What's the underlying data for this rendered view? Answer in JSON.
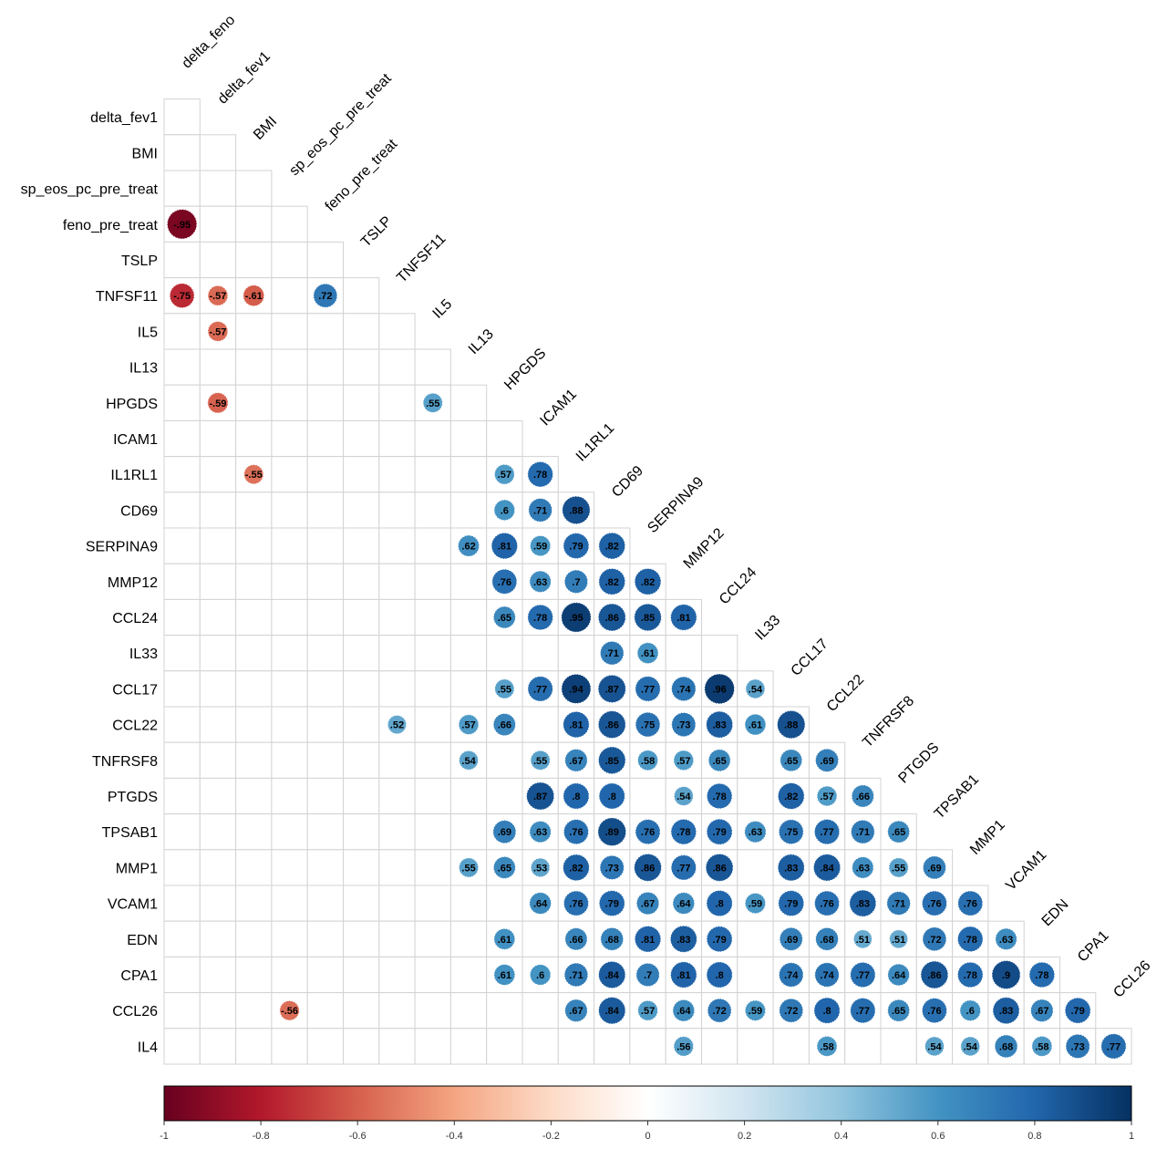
{
  "chart_data": {
    "type": "heatmap",
    "variables": [
      "delta_feno",
      "delta_fev1",
      "BMI",
      "sp_eos_pc_pre_treat",
      "feno_pre_treat",
      "TSLP",
      "TNFSF11",
      "IL5",
      "IL13",
      "HPGDS",
      "ICAM1",
      "IL1RL1",
      "CD69",
      "SERPINA9",
      "MMP12",
      "CCL24",
      "IL33",
      "CCL17",
      "CCL22",
      "TNFRSF8",
      "PTGDS",
      "TPSAB1",
      "MMP1",
      "VCAM1",
      "EDN",
      "CPA1",
      "CCL26",
      "IL4"
    ],
    "row_labels": [
      "delta_fev1",
      "BMI",
      "sp_eos_pc_pre_treat",
      "feno_pre_treat",
      "TSLP",
      "TNFSF11",
      "IL5",
      "IL13",
      "HPGDS",
      "ICAM1",
      "IL1RL1",
      "CD69",
      "SERPINA9",
      "MMP12",
      "CCL24",
      "IL33",
      "CCL17",
      "CCL22",
      "TNFRSF8",
      "PTGDS",
      "TPSAB1",
      "MMP1",
      "VCAM1",
      "EDN",
      "CPA1",
      "CCL26",
      "IL4"
    ],
    "col_labels": [
      "delta_feno",
      "delta_fev1",
      "BMI",
      "sp_eos_pc_pre_treat",
      "feno_pre_treat",
      "TSLP",
      "TNFSF11",
      "IL5",
      "IL13",
      "HPGDS",
      "ICAM1",
      "IL1RL1",
      "CD69",
      "SERPINA9",
      "MMP12",
      "CCL24",
      "IL33",
      "CCL17",
      "CCL22",
      "TNFRSF8",
      "PTGDS",
      "TPSAB1",
      "MMP1",
      "VCAM1",
      "EDN",
      "CPA1",
      "CCL26"
    ],
    "correlations": [
      {
        "row": "feno_pre_treat",
        "col": "delta_feno",
        "value": -0.95
      },
      {
        "row": "TNFSF11",
        "col": "delta_feno",
        "value": -0.75
      },
      {
        "row": "TNFSF11",
        "col": "delta_fev1",
        "value": -0.57
      },
      {
        "row": "TNFSF11",
        "col": "BMI",
        "value": -0.61
      },
      {
        "row": "TNFSF11",
        "col": "feno_pre_treat",
        "value": 0.72
      },
      {
        "row": "IL5",
        "col": "delta_fev1",
        "value": -0.57
      },
      {
        "row": "HPGDS",
        "col": "delta_fev1",
        "value": -0.59
      },
      {
        "row": "HPGDS",
        "col": "IL5",
        "value": 0.55
      },
      {
        "row": "IL1RL1",
        "col": "BMI",
        "value": -0.55
      },
      {
        "row": "IL1RL1",
        "col": "HPGDS",
        "value": 0.57
      },
      {
        "row": "IL1RL1",
        "col": "ICAM1",
        "value": 0.78
      },
      {
        "row": "CD69",
        "col": "HPGDS",
        "value": 0.6
      },
      {
        "row": "CD69",
        "col": "ICAM1",
        "value": 0.71
      },
      {
        "row": "CD69",
        "col": "IL1RL1",
        "value": 0.88
      },
      {
        "row": "SERPINA9",
        "col": "IL13",
        "value": 0.62
      },
      {
        "row": "SERPINA9",
        "col": "HPGDS",
        "value": 0.81
      },
      {
        "row": "SERPINA9",
        "col": "ICAM1",
        "value": 0.59
      },
      {
        "row": "SERPINA9",
        "col": "IL1RL1",
        "value": 0.79
      },
      {
        "row": "SERPINA9",
        "col": "CD69",
        "value": 0.82
      },
      {
        "row": "MMP12",
        "col": "HPGDS",
        "value": 0.76
      },
      {
        "row": "MMP12",
        "col": "ICAM1",
        "value": 0.63
      },
      {
        "row": "MMP12",
        "col": "IL1RL1",
        "value": 0.7
      },
      {
        "row": "MMP12",
        "col": "CD69",
        "value": 0.82
      },
      {
        "row": "MMP12",
        "col": "SERPINA9",
        "value": 0.82
      },
      {
        "row": "CCL24",
        "col": "HPGDS",
        "value": 0.65
      },
      {
        "row": "CCL24",
        "col": "ICAM1",
        "value": 0.78
      },
      {
        "row": "CCL24",
        "col": "IL1RL1",
        "value": 0.95
      },
      {
        "row": "CCL24",
        "col": "CD69",
        "value": 0.86
      },
      {
        "row": "CCL24",
        "col": "SERPINA9",
        "value": 0.85
      },
      {
        "row": "CCL24",
        "col": "MMP12",
        "value": 0.81
      },
      {
        "row": "IL33",
        "col": "CD69",
        "value": 0.71
      },
      {
        "row": "IL33",
        "col": "SERPINA9",
        "value": 0.61
      },
      {
        "row": "CCL17",
        "col": "HPGDS",
        "value": 0.55
      },
      {
        "row": "CCL17",
        "col": "ICAM1",
        "value": 0.77
      },
      {
        "row": "CCL17",
        "col": "IL1RL1",
        "value": 0.94
      },
      {
        "row": "CCL17",
        "col": "CD69",
        "value": 0.87
      },
      {
        "row": "CCL17",
        "col": "SERPINA9",
        "value": 0.77
      },
      {
        "row": "CCL17",
        "col": "MMP12",
        "value": 0.74
      },
      {
        "row": "CCL17",
        "col": "CCL24",
        "value": 0.96
      },
      {
        "row": "CCL17",
        "col": "IL33",
        "value": 0.54
      },
      {
        "row": "CCL22",
        "col": "TNFSF11",
        "value": 0.52
      },
      {
        "row": "CCL22",
        "col": "IL13",
        "value": 0.57
      },
      {
        "row": "CCL22",
        "col": "HPGDS",
        "value": 0.66
      },
      {
        "row": "CCL22",
        "col": "IL1RL1",
        "value": 0.81
      },
      {
        "row": "CCL22",
        "col": "CD69",
        "value": 0.86
      },
      {
        "row": "CCL22",
        "col": "SERPINA9",
        "value": 0.75
      },
      {
        "row": "CCL22",
        "col": "MMP12",
        "value": 0.73
      },
      {
        "row": "CCL22",
        "col": "CCL24",
        "value": 0.83
      },
      {
        "row": "CCL22",
        "col": "IL33",
        "value": 0.61
      },
      {
        "row": "CCL22",
        "col": "CCL17",
        "value": 0.88
      },
      {
        "row": "TNFRSF8",
        "col": "IL13",
        "value": 0.54
      },
      {
        "row": "TNFRSF8",
        "col": "ICAM1",
        "value": 0.55
      },
      {
        "row": "TNFRSF8",
        "col": "IL1RL1",
        "value": 0.67
      },
      {
        "row": "TNFRSF8",
        "col": "CD69",
        "value": 0.85
      },
      {
        "row": "TNFRSF8",
        "col": "SERPINA9",
        "value": 0.58
      },
      {
        "row": "TNFRSF8",
        "col": "MMP12",
        "value": 0.57
      },
      {
        "row": "TNFRSF8",
        "col": "CCL24",
        "value": 0.65
      },
      {
        "row": "TNFRSF8",
        "col": "CCL17",
        "value": 0.65
      },
      {
        "row": "TNFRSF8",
        "col": "CCL22",
        "value": 0.69
      },
      {
        "row": "PTGDS",
        "col": "ICAM1",
        "value": 0.87
      },
      {
        "row": "PTGDS",
        "col": "IL1RL1",
        "value": 0.8
      },
      {
        "row": "PTGDS",
        "col": "CD69",
        "value": 0.8
      },
      {
        "row": "PTGDS",
        "col": "MMP12",
        "value": 0.54
      },
      {
        "row": "PTGDS",
        "col": "CCL24",
        "value": 0.78
      },
      {
        "row": "PTGDS",
        "col": "CCL17",
        "value": 0.82
      },
      {
        "row": "PTGDS",
        "col": "CCL22",
        "value": 0.57
      },
      {
        "row": "PTGDS",
        "col": "TNFRSF8",
        "value": 0.66
      },
      {
        "row": "TPSAB1",
        "col": "HPGDS",
        "value": 0.69
      },
      {
        "row": "TPSAB1",
        "col": "ICAM1",
        "value": 0.63
      },
      {
        "row": "TPSAB1",
        "col": "IL1RL1",
        "value": 0.76
      },
      {
        "row": "TPSAB1",
        "col": "CD69",
        "value": 0.89
      },
      {
        "row": "TPSAB1",
        "col": "SERPINA9",
        "value": 0.76
      },
      {
        "row": "TPSAB1",
        "col": "MMP12",
        "value": 0.78
      },
      {
        "row": "TPSAB1",
        "col": "CCL24",
        "value": 0.79
      },
      {
        "row": "TPSAB1",
        "col": "IL33",
        "value": 0.63
      },
      {
        "row": "TPSAB1",
        "col": "CCL17",
        "value": 0.75
      },
      {
        "row": "TPSAB1",
        "col": "CCL22",
        "value": 0.77
      },
      {
        "row": "TPSAB1",
        "col": "TNFRSF8",
        "value": 0.71
      },
      {
        "row": "TPSAB1",
        "col": "PTGDS",
        "value": 0.65
      },
      {
        "row": "MMP1",
        "col": "IL13",
        "value": 0.55
      },
      {
        "row": "MMP1",
        "col": "HPGDS",
        "value": 0.65
      },
      {
        "row": "MMP1",
        "col": "ICAM1",
        "value": 0.53
      },
      {
        "row": "MMP1",
        "col": "IL1RL1",
        "value": 0.82
      },
      {
        "row": "MMP1",
        "col": "CD69",
        "value": 0.73
      },
      {
        "row": "MMP1",
        "col": "SERPINA9",
        "value": 0.86
      },
      {
        "row": "MMP1",
        "col": "MMP12",
        "value": 0.77
      },
      {
        "row": "MMP1",
        "col": "CCL24",
        "value": 0.86
      },
      {
        "row": "MMP1",
        "col": "CCL17",
        "value": 0.83
      },
      {
        "row": "MMP1",
        "col": "CCL22",
        "value": 0.84
      },
      {
        "row": "MMP1",
        "col": "TNFRSF8",
        "value": 0.63
      },
      {
        "row": "MMP1",
        "col": "PTGDS",
        "value": 0.55
      },
      {
        "row": "MMP1",
        "col": "TPSAB1",
        "value": 0.69
      },
      {
        "row": "VCAM1",
        "col": "ICAM1",
        "value": 0.64
      },
      {
        "row": "VCAM1",
        "col": "IL1RL1",
        "value": 0.76
      },
      {
        "row": "VCAM1",
        "col": "CD69",
        "value": 0.79
      },
      {
        "row": "VCAM1",
        "col": "SERPINA9",
        "value": 0.67
      },
      {
        "row": "VCAM1",
        "col": "MMP12",
        "value": 0.64
      },
      {
        "row": "VCAM1",
        "col": "CCL24",
        "value": 0.8
      },
      {
        "row": "VCAM1",
        "col": "IL33",
        "value": 0.59
      },
      {
        "row": "VCAM1",
        "col": "CCL17",
        "value": 0.79
      },
      {
        "row": "VCAM1",
        "col": "CCL22",
        "value": 0.76
      },
      {
        "row": "VCAM1",
        "col": "TNFRSF8",
        "value": 0.83
      },
      {
        "row": "VCAM1",
        "col": "PTGDS",
        "value": 0.71
      },
      {
        "row": "VCAM1",
        "col": "TPSAB1",
        "value": 0.76
      },
      {
        "row": "VCAM1",
        "col": "MMP1",
        "value": 0.76
      },
      {
        "row": "EDN",
        "col": "HPGDS",
        "value": 0.61
      },
      {
        "row": "EDN",
        "col": "IL1RL1",
        "value": 0.66
      },
      {
        "row": "EDN",
        "col": "CD69",
        "value": 0.68
      },
      {
        "row": "EDN",
        "col": "SERPINA9",
        "value": 0.81
      },
      {
        "row": "EDN",
        "col": "MMP12",
        "value": 0.83
      },
      {
        "row": "EDN",
        "col": "CCL24",
        "value": 0.79
      },
      {
        "row": "EDN",
        "col": "CCL17",
        "value": 0.69
      },
      {
        "row": "EDN",
        "col": "CCL22",
        "value": 0.68
      },
      {
        "row": "EDN",
        "col": "TNFRSF8",
        "value": 0.51
      },
      {
        "row": "EDN",
        "col": "PTGDS",
        "value": 0.51
      },
      {
        "row": "EDN",
        "col": "TPSAB1",
        "value": 0.72
      },
      {
        "row": "EDN",
        "col": "MMP1",
        "value": 0.78
      },
      {
        "row": "EDN",
        "col": "VCAM1",
        "value": 0.63
      },
      {
        "row": "CPA1",
        "col": "HPGDS",
        "value": 0.61
      },
      {
        "row": "CPA1",
        "col": "ICAM1",
        "value": 0.6
      },
      {
        "row": "CPA1",
        "col": "IL1RL1",
        "value": 0.71
      },
      {
        "row": "CPA1",
        "col": "CD69",
        "value": 0.84
      },
      {
        "row": "CPA1",
        "col": "SERPINA9",
        "value": 0.7
      },
      {
        "row": "CPA1",
        "col": "MMP12",
        "value": 0.81
      },
      {
        "row": "CPA1",
        "col": "CCL24",
        "value": 0.8
      },
      {
        "row": "CPA1",
        "col": "CCL17",
        "value": 0.74
      },
      {
        "row": "CPA1",
        "col": "CCL22",
        "value": 0.74
      },
      {
        "row": "CPA1",
        "col": "TNFRSF8",
        "value": 0.77
      },
      {
        "row": "CPA1",
        "col": "PTGDS",
        "value": 0.64
      },
      {
        "row": "CPA1",
        "col": "TPSAB1",
        "value": 0.86
      },
      {
        "row": "CPA1",
        "col": "MMP1",
        "value": 0.78
      },
      {
        "row": "CPA1",
        "col": "VCAM1",
        "value": 0.9
      },
      {
        "row": "CPA1",
        "col": "EDN",
        "value": 0.78
      },
      {
        "row": "CCL26",
        "col": "sp_eos_pc_pre_treat",
        "value": -0.56
      },
      {
        "row": "CCL26",
        "col": "IL1RL1",
        "value": 0.67
      },
      {
        "row": "CCL26",
        "col": "CD69",
        "value": 0.84
      },
      {
        "row": "CCL26",
        "col": "SERPINA9",
        "value": 0.57
      },
      {
        "row": "CCL26",
        "col": "MMP12",
        "value": 0.64
      },
      {
        "row": "CCL26",
        "col": "CCL24",
        "value": 0.72
      },
      {
        "row": "CCL26",
        "col": "IL33",
        "value": 0.59
      },
      {
        "row": "CCL26",
        "col": "CCL17",
        "value": 0.72
      },
      {
        "row": "CCL26",
        "col": "CCL22",
        "value": 0.8
      },
      {
        "row": "CCL26",
        "col": "TNFRSF8",
        "value": 0.77
      },
      {
        "row": "CCL26",
        "col": "PTGDS",
        "value": 0.65
      },
      {
        "row": "CCL26",
        "col": "TPSAB1",
        "value": 0.76
      },
      {
        "row": "CCL26",
        "col": "MMP1",
        "value": 0.6
      },
      {
        "row": "CCL26",
        "col": "VCAM1",
        "value": 0.83
      },
      {
        "row": "CCL26",
        "col": "EDN",
        "value": 0.67
      },
      {
        "row": "CCL26",
        "col": "CPA1",
        "value": 0.79
      },
      {
        "row": "IL4",
        "col": "MMP12",
        "value": 0.56
      },
      {
        "row": "IL4",
        "col": "CCL22",
        "value": 0.58
      },
      {
        "row": "IL4",
        "col": "TPSAB1",
        "value": 0.54
      },
      {
        "row": "IL4",
        "col": "MMP1",
        "value": 0.54
      },
      {
        "row": "IL4",
        "col": "VCAM1",
        "value": 0.68
      },
      {
        "row": "IL4",
        "col": "EDN",
        "value": 0.58
      },
      {
        "row": "IL4",
        "col": "CPA1",
        "value": 0.73
      },
      {
        "row": "IL4",
        "col": "CCL26",
        "value": 0.77
      }
    ],
    "colorbar": {
      "range": [
        -1,
        1
      ],
      "ticks": [
        "-1",
        "-0.8",
        "-0.6",
        "-0.4",
        "-0.2",
        "0",
        "0.2",
        "0.4",
        "0.6",
        "0.8",
        "1"
      ],
      "colors": [
        "#67001f",
        "#b2182b",
        "#d6604d",
        "#f4a582",
        "#fddbc7",
        "#ffffff",
        "#d1e5f0",
        "#92c5de",
        "#4393c3",
        "#2166ac",
        "#053061"
      ]
    },
    "title": "",
    "legend": "bottom",
    "grid": true
  }
}
